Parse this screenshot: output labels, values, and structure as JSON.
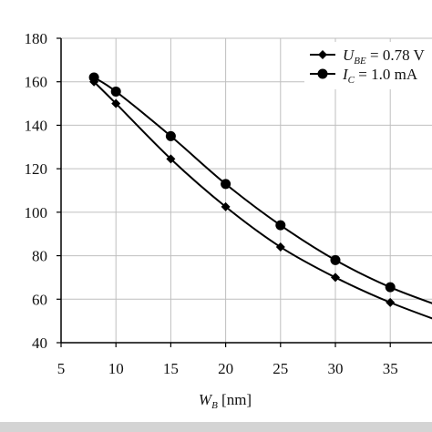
{
  "chart_data": {
    "type": "line",
    "title": "",
    "xlabel": {
      "main": "W",
      "sub": "B",
      "unit": " [nm]"
    },
    "ylabel": "",
    "xlim": [
      5,
      40
    ],
    "ylim": [
      40,
      180
    ],
    "x_ticks": [
      5,
      10,
      15,
      20,
      25,
      30,
      35
    ],
    "y_ticks": [
      40,
      60,
      80,
      100,
      120,
      140,
      160,
      180
    ],
    "grid": true,
    "legend_position": "top-right",
    "series": [
      {
        "name": {
          "main": "U",
          "sub": "BE",
          "rest": " = 0.78 V"
        },
        "marker": "diamond",
        "color": "#000000",
        "x": [
          8,
          10,
          15,
          20,
          25,
          30,
          35,
          40
        ],
        "y": [
          160,
          150,
          124.5,
          102.5,
          84,
          70,
          58.5,
          49
        ]
      },
      {
        "name": {
          "main": "I",
          "sub": "C",
          "rest": " = 1.0 mA"
        },
        "marker": "circle",
        "color": "#000000",
        "x": [
          8,
          10,
          15,
          20,
          25,
          30,
          35,
          40
        ],
        "y": [
          162,
          155.5,
          135,
          113,
          94,
          78,
          65.5,
          56
        ]
      }
    ]
  }
}
